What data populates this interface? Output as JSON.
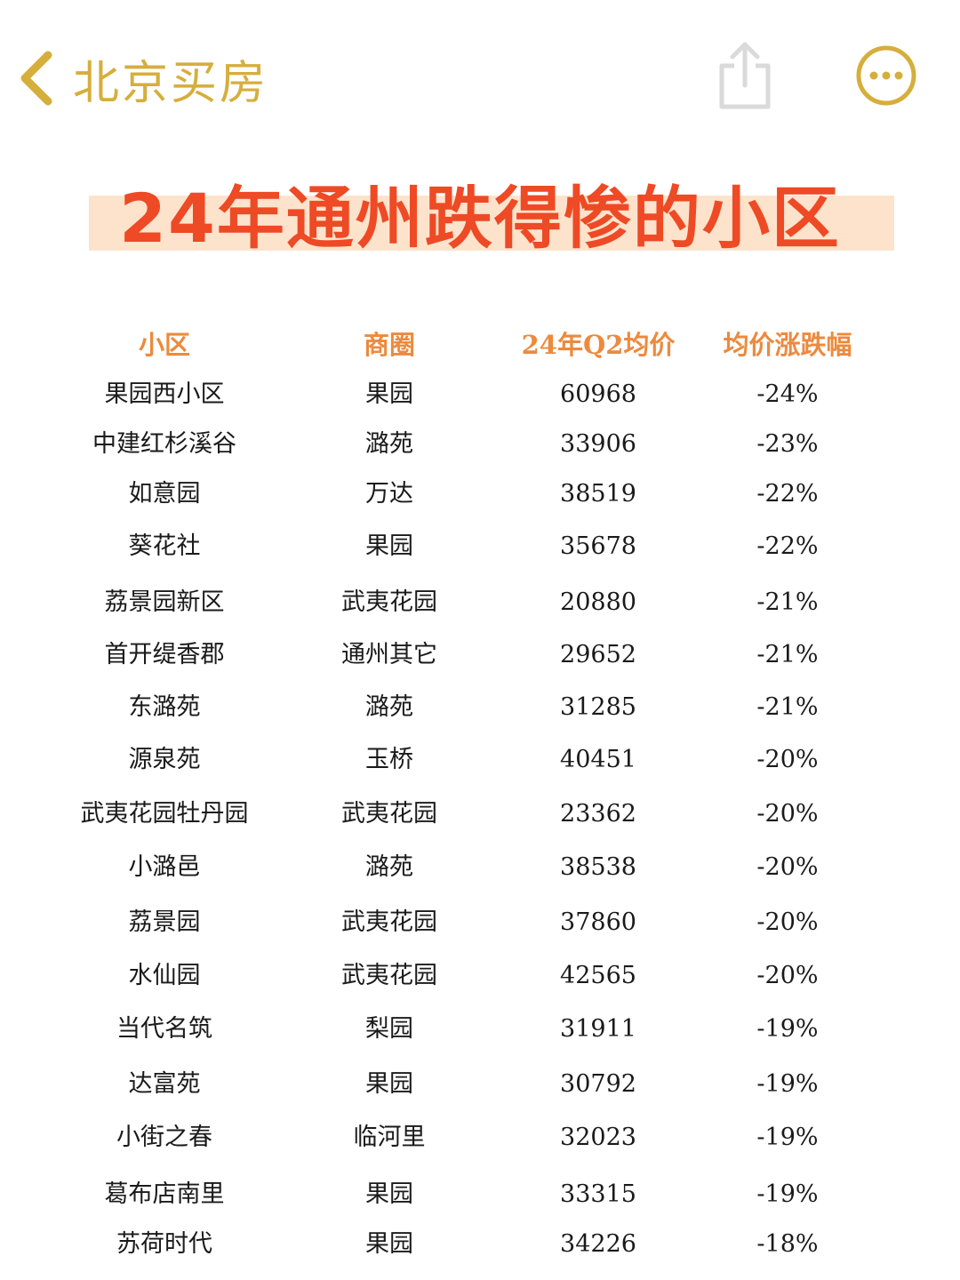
{
  "nav": {
    "title": "北京买房",
    "back_icon": "chevron-left-icon",
    "share_icon": "share-icon",
    "more_icon": "more-icon",
    "accent_color": "#d6ae3c"
  },
  "headline": {
    "text": "24年通州跌得惨的小区",
    "color": "#ee4a25",
    "band_color": "#fde3cc"
  },
  "table": {
    "header_color": "#ec8a3e",
    "columns": [
      "小区",
      "商圈",
      "24年Q2均价",
      "均价涨跌幅"
    ],
    "rows": [
      [
        "果园西小区",
        "果园",
        "60968",
        "-24%"
      ],
      [
        "中建红杉溪谷",
        "潞苑",
        "33906",
        "-23%"
      ],
      [
        "如意园",
        "万达",
        "38519",
        "-22%"
      ],
      [
        "葵花社",
        "果园",
        "35678",
        "-22%"
      ],
      [
        "荔景园新区",
        "武夷花园",
        "20880",
        "-21%"
      ],
      [
        "首开缇香郡",
        "通州其它",
        "29652",
        "-21%"
      ],
      [
        "东潞苑",
        "潞苑",
        "31285",
        "-21%"
      ],
      [
        "源泉苑",
        "玉桥",
        "40451",
        "-20%"
      ],
      [
        "武夷花园牡丹园",
        "武夷花园",
        "23362",
        "-20%"
      ],
      [
        "小潞邑",
        "潞苑",
        "38538",
        "-20%"
      ],
      [
        "荔景园",
        "武夷花园",
        "37860",
        "-20%"
      ],
      [
        "水仙园",
        "武夷花园",
        "42565",
        "-20%"
      ],
      [
        "当代名筑",
        "梨园",
        "31911",
        "-19%"
      ],
      [
        "达富苑",
        "果园",
        "30792",
        "-19%"
      ],
      [
        "小街之春",
        "临河里",
        "32023",
        "-19%"
      ],
      [
        "葛布店南里",
        "果园",
        "33315",
        "-19%"
      ],
      [
        "苏荷时代",
        "果园",
        "34226",
        "-18%"
      ]
    ]
  }
}
